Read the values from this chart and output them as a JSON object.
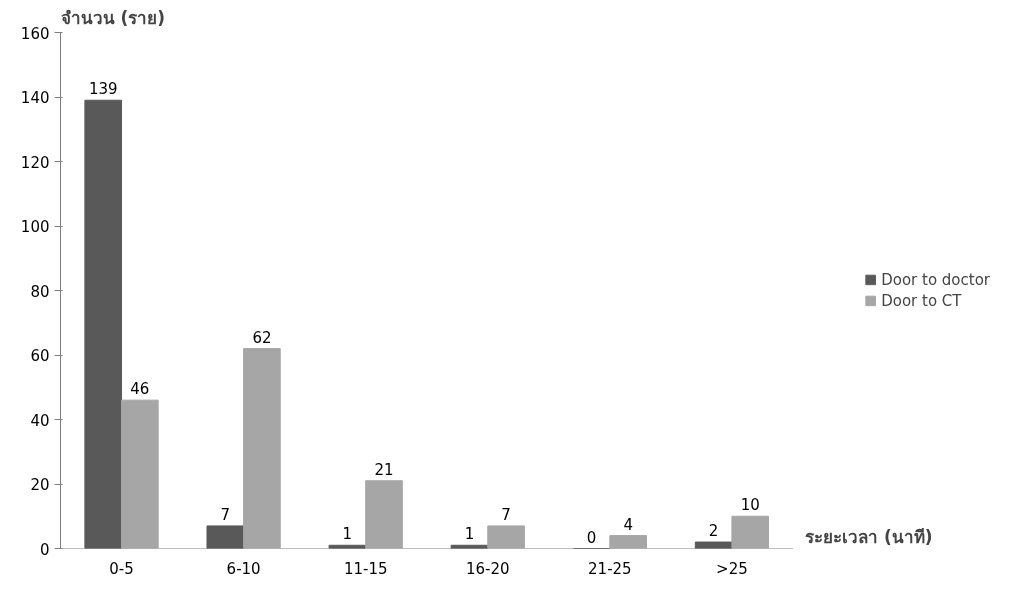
{
  "chart_data": {
    "type": "bar",
    "ylabel": "จำนวน (ราย)",
    "xlabel": "ระยะเวลา (นาที)",
    "categories": [
      "0-5",
      "6-10",
      "11-15",
      "16-20",
      "21-25",
      ">25"
    ],
    "series": [
      {
        "name": "Door to doctor",
        "color": "#595959",
        "values": [
          139,
          7,
          1,
          1,
          0,
          2
        ]
      },
      {
        "name": "Door to CT",
        "color": "#a6a6a6",
        "values": [
          46,
          62,
          21,
          7,
          4,
          10
        ]
      }
    ],
    "ylim": [
      0,
      160
    ],
    "yticks": [
      0,
      20,
      40,
      60,
      80,
      100,
      120,
      140,
      160
    ],
    "data_labels": true,
    "grid": false,
    "legend": "right"
  }
}
